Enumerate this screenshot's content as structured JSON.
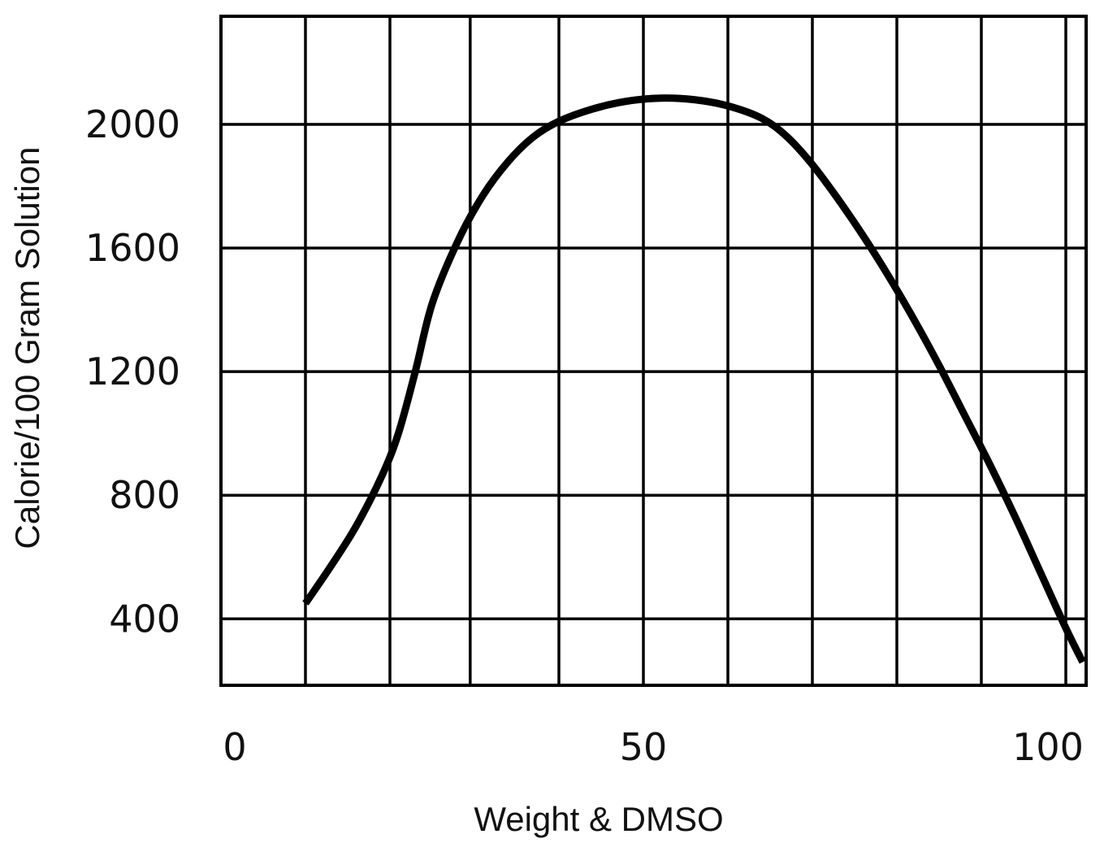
{
  "chart_data": {
    "type": "line",
    "title": "",
    "xlabel": "Weight & DMSO",
    "ylabel": "Calorie/100 Gram Solution",
    "xlim": [
      0,
      100
    ],
    "ylim": [
      185,
      2350
    ],
    "x_tick_labels": [
      {
        "value": 0,
        "label": "0"
      },
      {
        "value": 50,
        "label": "50"
      },
      {
        "value": 100,
        "label": "100"
      }
    ],
    "y_tick_labels": [
      {
        "value": 400,
        "label": "400"
      },
      {
        "value": 800,
        "label": "800"
      },
      {
        "value": 1200,
        "label": "1200"
      },
      {
        "value": 1600,
        "label": "1600"
      },
      {
        "value": 2000,
        "label": "2000"
      }
    ],
    "x_gridlines": [
      0,
      10,
      20,
      29.5,
      40,
      50,
      60,
      70,
      80,
      90,
      100
    ],
    "y_gridlines": [
      400,
      800,
      1200,
      1600,
      2000
    ],
    "grid": true,
    "color": "#000000",
    "series": [
      {
        "values": [
          {
            "x": 10,
            "y": 450
          },
          {
            "x": 13,
            "y": 570
          },
          {
            "x": 16,
            "y": 700
          },
          {
            "x": 19,
            "y": 860
          },
          {
            "x": 21,
            "y": 1000
          },
          {
            "x": 23,
            "y": 1200
          },
          {
            "x": 25,
            "y": 1420
          },
          {
            "x": 28,
            "y": 1620
          },
          {
            "x": 31,
            "y": 1770
          },
          {
            "x": 34,
            "y": 1880
          },
          {
            "x": 37,
            "y": 1960
          },
          {
            "x": 40,
            "y": 2010
          },
          {
            "x": 44,
            "y": 2050
          },
          {
            "x": 48,
            "y": 2075
          },
          {
            "x": 52,
            "y": 2085
          },
          {
            "x": 56,
            "y": 2080
          },
          {
            "x": 60,
            "y": 2060
          },
          {
            "x": 64,
            "y": 2020
          },
          {
            "x": 67,
            "y": 1960
          },
          {
            "x": 70,
            "y": 1870
          },
          {
            "x": 73,
            "y": 1760
          },
          {
            "x": 76,
            "y": 1640
          },
          {
            "x": 79,
            "y": 1510
          },
          {
            "x": 82,
            "y": 1370
          },
          {
            "x": 85,
            "y": 1220
          },
          {
            "x": 88,
            "y": 1060
          },
          {
            "x": 91,
            "y": 900
          },
          {
            "x": 94,
            "y": 730
          },
          {
            "x": 97,
            "y": 550
          },
          {
            "x": 100,
            "y": 370
          },
          {
            "x": 102,
            "y": 260
          }
        ]
      }
    ]
  }
}
